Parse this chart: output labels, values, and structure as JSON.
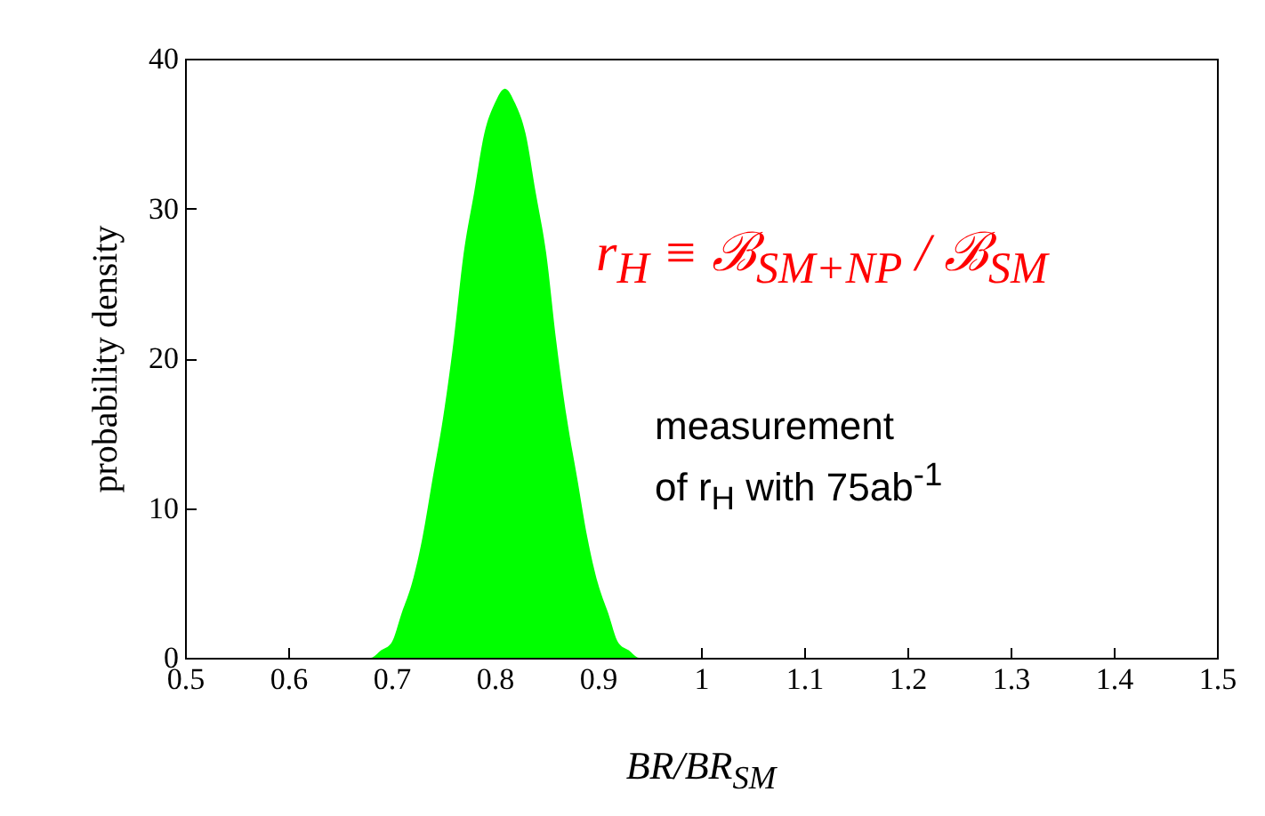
{
  "chart_data": {
    "type": "area",
    "xlabel": "BR/BR$_{SM}$",
    "ylabel": "probability density",
    "color": "#00ff00",
    "x": [
      0.5,
      0.68,
      0.69,
      0.7,
      0.71,
      0.72,
      0.73,
      0.74,
      0.75,
      0.76,
      0.77,
      0.78,
      0.79,
      0.8,
      0.81,
      0.82,
      0.83,
      0.84,
      0.85,
      0.86,
      0.87,
      0.88,
      0.89,
      0.9,
      0.91,
      0.92,
      0.93,
      0.94,
      1.5
    ],
    "values": [
      0,
      0,
      0.5,
      1,
      3,
      5,
      8,
      12,
      16,
      21,
      27,
      31,
      35,
      37,
      38,
      37,
      35,
      31,
      27,
      21,
      16,
      12,
      8,
      5,
      3,
      1,
      0.5,
      0,
      0
    ],
    "xlim": [
      0.5,
      1.5
    ],
    "xticks": [
      0.5,
      0.6,
      0.7,
      0.8,
      0.9,
      1,
      1.1,
      1.2,
      1.3,
      1.4,
      1.5
    ],
    "ylim": [
      0,
      40
    ],
    "yticks": [
      0,
      10,
      20,
      30,
      40
    ],
    "annotations": [
      "r$_{H}$ ≡ ℬ$_{SM+NP}$ / ℬ$_{SM}$",
      "measurement\nof r$_{H}$ with 75ab$^{-1}$"
    ]
  }
}
